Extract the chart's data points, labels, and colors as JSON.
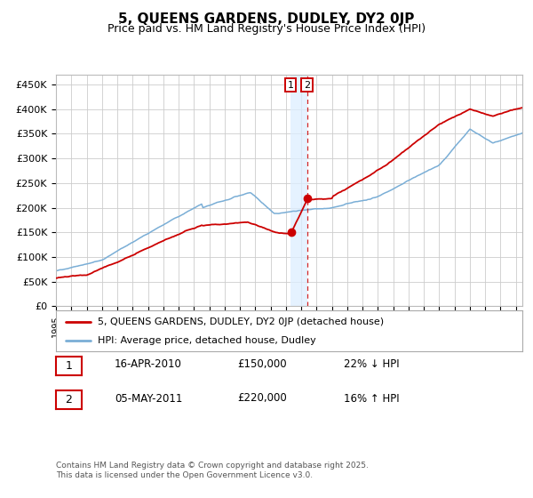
{
  "title": "5, QUEENS GARDENS, DUDLEY, DY2 0JP",
  "subtitle": "Price paid vs. HM Land Registry's House Price Index (HPI)",
  "legend_label_red": "5, QUEENS GARDENS, DUDLEY, DY2 0JP (detached house)",
  "legend_label_blue": "HPI: Average price, detached house, Dudley",
  "sale1_date": "16-APR-2010",
  "sale1_price": 150000,
  "sale1_hpi": "22% ↓ HPI",
  "sale2_date": "05-MAY-2011",
  "sale2_price": 220000,
  "sale2_hpi": "16% ↑ HPI",
  "footnote1": "Contains HM Land Registry data © Crown copyright and database right 2025.",
  "footnote2": "This data is licensed under the Open Government Licence v3.0.",
  "red_color": "#cc0000",
  "blue_color": "#7aaed6",
  "grid_color": "#cccccc",
  "background_color": "#ffffff",
  "ylabel_vals": [
    0,
    50000,
    100000,
    150000,
    200000,
    250000,
    300000,
    350000,
    400000,
    450000
  ],
  "ylabel_texts": [
    "£0",
    "£50K",
    "£100K",
    "£150K",
    "£200K",
    "£250K",
    "£300K",
    "£350K",
    "£400K",
    "£450K"
  ]
}
